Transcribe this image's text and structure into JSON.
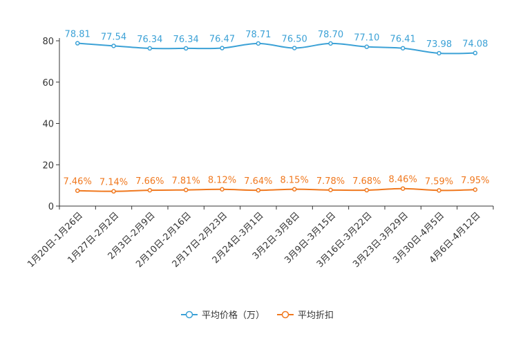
{
  "chart_data": {
    "type": "line",
    "categories": [
      "1月20日-1月26日",
      "1月27日-2月2日",
      "2月3日-2月9日",
      "2月10日-2月16日",
      "2月17日-2月23日",
      "2月24日-3月1日",
      "3月2日-3月8日",
      "3月9日-3月15日",
      "3月16日-3月22日",
      "3月23日-3月29日",
      "3月30日-4月5日",
      "4月6日-4月12日"
    ],
    "ylim": [
      0,
      80
    ],
    "yticks": [
      0,
      20,
      40,
      60,
      80
    ],
    "grid": false,
    "legend_position": "bottom-center",
    "series": [
      {
        "name": "平均价格（万）",
        "color": "#3ba1d6",
        "values": [
          78.81,
          77.54,
          76.34,
          76.34,
          76.47,
          78.71,
          76.5,
          78.7,
          77.1,
          76.41,
          73.98,
          74.08
        ],
        "labels": [
          "78.81",
          "77.54",
          "76.34",
          "76.34",
          "76.47",
          "78.71",
          "76.50",
          "78.70",
          "77.10",
          "76.41",
          "73.98",
          "74.08"
        ]
      },
      {
        "name": "平均折扣",
        "color": "#f0781e",
        "values": [
          7.46,
          7.14,
          7.66,
          7.81,
          8.12,
          7.64,
          8.15,
          7.78,
          7.68,
          8.46,
          7.59,
          7.95
        ],
        "labels": [
          "7.46%",
          "7.14%",
          "7.66%",
          "7.81%",
          "8.12%",
          "7.64%",
          "8.15%",
          "7.78%",
          "7.68%",
          "8.46%",
          "7.59%",
          "7.95%"
        ]
      }
    ]
  }
}
